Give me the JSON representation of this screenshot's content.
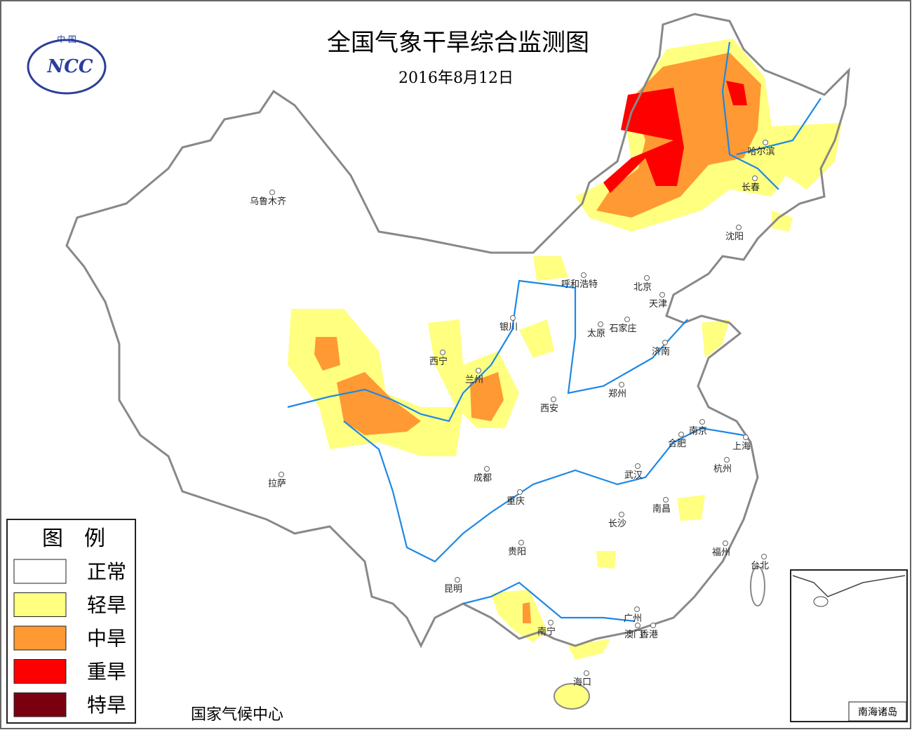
{
  "header": {
    "title": "全国气象干旱综合监测图",
    "date": "2016年8月12日",
    "logo": {
      "top": "中 国",
      "mark": "NCC"
    }
  },
  "legend": {
    "title": "图　例",
    "items": [
      {
        "label": "正常",
        "color": "#ffffff"
      },
      {
        "label": "轻旱",
        "color": "#ffff80"
      },
      {
        "label": "中旱",
        "color": "#ff9933"
      },
      {
        "label": "重旱",
        "color": "#ff0000"
      },
      {
        "label": "特旱",
        "color": "#7a0010"
      }
    ]
  },
  "cities": [
    "乌鲁木齐",
    "哈尔滨",
    "长春",
    "沈阳",
    "呼和浩特",
    "北京",
    "天津",
    "银川",
    "太原",
    "石家庄",
    "西宁",
    "济南",
    "兰州",
    "郑州",
    "西安",
    "南京",
    "合肥",
    "上海",
    "成都",
    "武汉",
    "杭州",
    "拉萨",
    "重庆",
    "南昌",
    "长沙",
    "贵阳",
    "福州",
    "台北",
    "昆明",
    "南宁",
    "广州",
    "澳门",
    "香港",
    "海口"
  ],
  "footer": "国家气候中心",
  "inset": {
    "label": "南海诸岛"
  }
}
